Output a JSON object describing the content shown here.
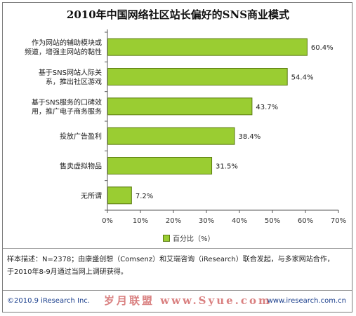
{
  "title": "2010年中国网络社区站长偏好的SNS商业模式",
  "chart_data": {
    "type": "bar",
    "orientation": "horizontal",
    "categories": [
      [
        "作为网站的辅助模块或",
        "频道，增强主网站的黏性"
      ],
      [
        "基于SNS网站人际关",
        "系，推出社区游戏"
      ],
      [
        "基于SNS服务的口碑效",
        "用，推广电子商务服务"
      ],
      [
        "投放广告盈利"
      ],
      [
        "售卖虚拟物品"
      ],
      [
        "无所谓"
      ]
    ],
    "values": [
      60.4,
      54.4,
      43.7,
      38.4,
      31.5,
      7.2
    ],
    "value_labels": [
      "60.4%",
      "54.4%",
      "43.7%",
      "38.4%",
      "31.5%",
      "7.2%"
    ],
    "xlim": [
      0,
      70
    ],
    "x_ticks": [
      0,
      10,
      20,
      30,
      40,
      50,
      60,
      70
    ],
    "x_tick_labels": [
      "0%",
      "10%",
      "20%",
      "30%",
      "40%",
      "50%",
      "60%",
      "70%"
    ],
    "series": [
      {
        "name": "百分比（%）"
      }
    ],
    "legend_position": "bottom",
    "grid": false,
    "bar_color": "#9acd32",
    "bar_edge_color": "#5a7a10"
  },
  "note": {
    "line1": "样本描述：N=2378；由康盛创想（Comsenz）和艾瑞咨询（iResearch）联合发起，与多家网站合作，",
    "line2": "于2010年8-9月通过当网上调研获得。"
  },
  "footer": {
    "copyright": "©2010.9 iResearch Inc.",
    "watermark": "岁月联盟  www.Syue.com",
    "url": "www.iresearch.com.cn"
  }
}
